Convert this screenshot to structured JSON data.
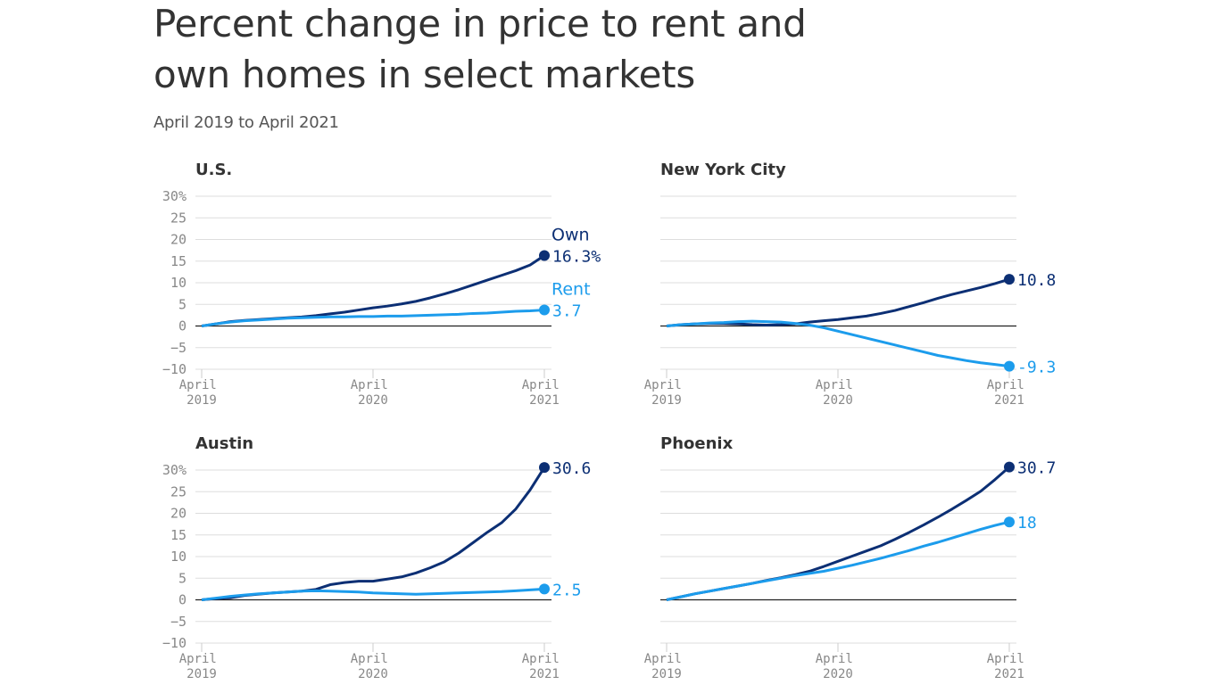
{
  "title": "Percent change in price to rent and own homes in select markets",
  "subtitle": "April 2019 to April 2021",
  "chart_data": [
    {
      "type": "line",
      "title": "U.S.",
      "x": [
        "2019-04",
        "2019-05",
        "2019-06",
        "2019-07",
        "2019-08",
        "2019-09",
        "2019-10",
        "2019-11",
        "2019-12",
        "2020-01",
        "2020-02",
        "2020-03",
        "2020-04",
        "2020-05",
        "2020-06",
        "2020-07",
        "2020-08",
        "2020-09",
        "2020-10",
        "2020-11",
        "2020-12",
        "2021-01",
        "2021-02",
        "2021-03",
        "2021-04"
      ],
      "xlim": [
        "2019-04",
        "2021-04"
      ],
      "xticks": [
        {
          "value": "2019-04",
          "label": "April 2019"
        },
        {
          "value": "2020-04",
          "label": "April 2020"
        },
        {
          "value": "2021-04",
          "label": "April 2021"
        }
      ],
      "ylim": [
        -10,
        30
      ],
      "yticks": [
        {
          "value": 30,
          "label": "30%"
        },
        25,
        20,
        15,
        10,
        5,
        0,
        {
          "value": -5,
          "label": "−5"
        },
        {
          "value": -10,
          "label": "−10"
        }
      ],
      "ytick_labels": true,
      "series": [
        {
          "name": "Own",
          "color": "#0c2f74",
          "values": [
            0,
            0.5,
            1,
            1.3,
            1.5,
            1.7,
            1.9,
            2.1,
            2.4,
            2.8,
            3.2,
            3.7,
            4.2,
            4.6,
            5.1,
            5.7,
            6.5,
            7.4,
            8.4,
            9.5,
            10.6,
            11.7,
            12.8,
            14.1,
            16.3
          ],
          "value_labels": [
            null,
            null,
            null,
            null,
            null,
            null,
            null,
            null,
            null,
            null,
            null,
            null,
            null,
            null,
            null,
            null,
            null,
            null,
            null,
            null,
            null,
            null,
            null,
            null,
            "16.3%"
          ]
        },
        {
          "name": "Rent",
          "color": "#1c9cec",
          "values": [
            0,
            0.5,
            0.9,
            1.2,
            1.4,
            1.6,
            1.8,
            1.9,
            2.0,
            2.1,
            2.1,
            2.2,
            2.2,
            2.3,
            2.3,
            2.4,
            2.5,
            2.6,
            2.7,
            2.9,
            3.0,
            3.2,
            3.4,
            3.5,
            3.7
          ]
        }
      ]
    },
    {
      "type": "line",
      "title": "New York City",
      "x": [
        "2019-04",
        "2019-05",
        "2019-06",
        "2019-07",
        "2019-08",
        "2019-09",
        "2019-10",
        "2019-11",
        "2019-12",
        "2020-01",
        "2020-02",
        "2020-03",
        "2020-04",
        "2020-05",
        "2020-06",
        "2020-07",
        "2020-08",
        "2020-09",
        "2020-10",
        "2020-11",
        "2020-12",
        "2021-01",
        "2021-02",
        "2021-03",
        "2021-04"
      ],
      "xlim": [
        "2019-04",
        "2021-04"
      ],
      "xticks": [
        {
          "value": "2019-04",
          "label": "April 2019"
        },
        {
          "value": "2020-04",
          "label": "April 2020"
        },
        {
          "value": "2021-04",
          "label": "April 2021"
        }
      ],
      "ylim": [
        -10,
        30
      ],
      "yticks": [
        30,
        25,
        20,
        15,
        10,
        5,
        0,
        -5,
        -10
      ],
      "ytick_labels": false,
      "series": [
        {
          "color": "#0c2f74",
          "values": [
            0,
            0.3,
            0.5,
            0.6,
            0.6,
            0.5,
            0.3,
            0.2,
            0.3,
            0.5,
            0.9,
            1.2,
            1.5,
            1.9,
            2.3,
            2.9,
            3.6,
            4.5,
            5.4,
            6.4,
            7.3,
            8.1,
            8.9,
            9.8,
            10.8
          ]
        },
        {
          "color": "#1c9cec",
          "values": [
            0,
            0.3,
            0.5,
            0.7,
            0.8,
            1.0,
            1.1,
            1.0,
            0.9,
            0.6,
            0.2,
            -0.4,
            -1.2,
            -2.0,
            -2.8,
            -3.6,
            -4.4,
            -5.2,
            -6.0,
            -6.8,
            -7.4,
            -8.0,
            -8.5,
            -8.9,
            -9.3
          ]
        }
      ]
    },
    {
      "type": "line",
      "title": "Austin",
      "x": [
        "2019-04",
        "2019-05",
        "2019-06",
        "2019-07",
        "2019-08",
        "2019-09",
        "2019-10",
        "2019-11",
        "2019-12",
        "2020-01",
        "2020-02",
        "2020-03",
        "2020-04",
        "2020-05",
        "2020-06",
        "2020-07",
        "2020-08",
        "2020-09",
        "2020-10",
        "2020-11",
        "2020-12",
        "2021-01",
        "2021-02",
        "2021-03",
        "2021-04"
      ],
      "xlim": [
        "2019-04",
        "2021-04"
      ],
      "xticks": [
        {
          "value": "2019-04",
          "label": "April 2019"
        },
        {
          "value": "2020-04",
          "label": "April 2020"
        },
        {
          "value": "2021-04",
          "label": "April 2021"
        }
      ],
      "ylim": [
        -10,
        30
      ],
      "yticks": [
        {
          "value": 30,
          "label": "30%"
        },
        25,
        20,
        15,
        10,
        5,
        0,
        {
          "value": -5,
          "label": "−5"
        },
        {
          "value": -10,
          "label": "−10"
        }
      ],
      "ytick_labels": true,
      "series": [
        {
          "color": "#0c2f74",
          "values": [
            0,
            0.3,
            0.5,
            1.0,
            1.3,
            1.6,
            1.8,
            2.0,
            2.4,
            3.5,
            4.0,
            4.3,
            4.3,
            4.8,
            5.3,
            6.2,
            7.4,
            8.8,
            10.8,
            13.2,
            15.6,
            17.8,
            21.0,
            25.4,
            30.6
          ]
        },
        {
          "color": "#1c9cec",
          "values": [
            0,
            0.4,
            0.8,
            1.1,
            1.4,
            1.6,
            1.8,
            2.0,
            2.1,
            2.0,
            1.9,
            1.8,
            1.6,
            1.5,
            1.4,
            1.3,
            1.4,
            1.5,
            1.6,
            1.7,
            1.8,
            1.9,
            2.1,
            2.3,
            2.5
          ]
        }
      ]
    },
    {
      "type": "line",
      "title": "Phoenix",
      "x": [
        "2019-04",
        "2019-05",
        "2019-06",
        "2019-07",
        "2019-08",
        "2019-09",
        "2019-10",
        "2019-11",
        "2019-12",
        "2020-01",
        "2020-02",
        "2020-03",
        "2020-04",
        "2020-05",
        "2020-06",
        "2020-07",
        "2020-08",
        "2020-09",
        "2020-10",
        "2020-11",
        "2020-12",
        "2021-01",
        "2021-02",
        "2021-03",
        "2021-04"
      ],
      "xlim": [
        "2019-04",
        "2021-04"
      ],
      "xticks": [
        {
          "value": "2019-04",
          "label": "April 2019"
        },
        {
          "value": "2020-04",
          "label": "April 2020"
        },
        {
          "value": "2021-04",
          "label": "April 2021"
        }
      ],
      "ylim": [
        -10,
        30
      ],
      "yticks": [
        30,
        25,
        20,
        15,
        10,
        5,
        0,
        -5,
        -10
      ],
      "ytick_labels": false,
      "series": [
        {
          "color": "#0c2f74",
          "values": [
            0,
            0.7,
            1.4,
            2.0,
            2.6,
            3.2,
            3.8,
            4.5,
            5.1,
            5.8,
            6.6,
            7.7,
            8.9,
            10.1,
            11.3,
            12.5,
            14.0,
            15.6,
            17.3,
            19.1,
            21.0,
            23.0,
            25.1,
            27.8,
            30.7
          ]
        },
        {
          "color": "#1c9cec",
          "values": [
            0,
            0.7,
            1.4,
            2.0,
            2.6,
            3.2,
            3.8,
            4.4,
            5.0,
            5.6,
            6.1,
            6.6,
            7.3,
            8.0,
            8.8,
            9.6,
            10.5,
            11.4,
            12.4,
            13.3,
            14.3,
            15.3,
            16.3,
            17.2,
            18
          ]
        }
      ]
    }
  ]
}
